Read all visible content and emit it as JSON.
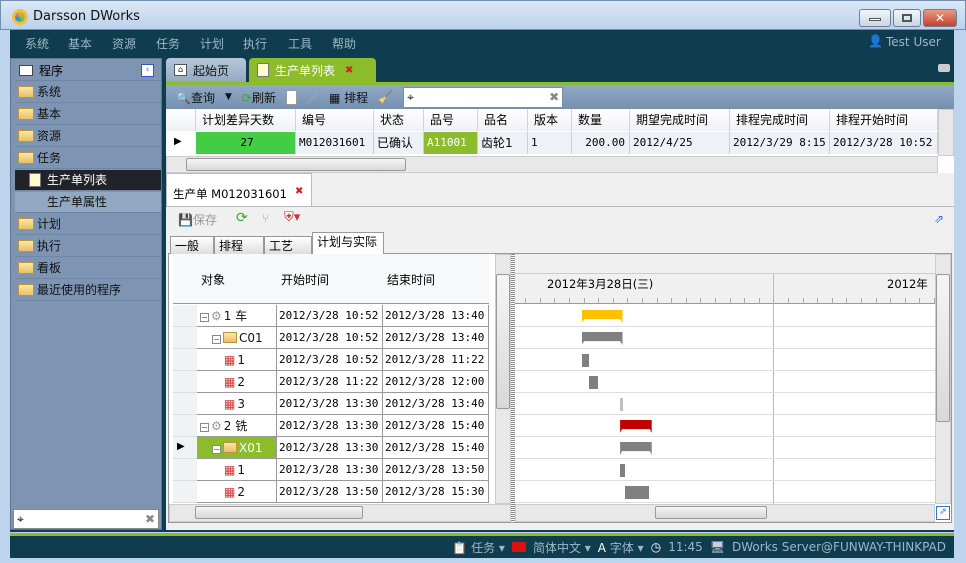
{
  "window": {
    "title": "Darsson DWorks"
  },
  "menu": [
    "系统",
    "基本",
    "资源",
    "任务",
    "计划",
    "执行",
    "工具",
    "帮助"
  ],
  "user": "Test User",
  "sidebar": {
    "header": "程序",
    "items": [
      "系统",
      "基本",
      "资源",
      "任务"
    ],
    "sub_selected": "生产单列表",
    "sub_item": "生产单属性",
    "items2": [
      "计划",
      "执行",
      "看板",
      "最近使用的程序"
    ],
    "search_value": ""
  },
  "tabs": [
    {
      "label": "起始页"
    },
    {
      "label": "生产单列表",
      "active": true
    }
  ],
  "toolbar": {
    "query": "查询",
    "refresh": "刷新",
    "schedule": "排程",
    "search_value": ""
  },
  "list": {
    "columns": [
      "计划差异天数",
      "编号",
      "状态",
      "品号",
      "品名",
      "版本",
      "数量",
      "期望完成时间",
      "排程完成时间",
      "排程开始时间"
    ],
    "rows": [
      [
        "27",
        "M012031601",
        "已确认",
        "A11001",
        "齿轮1",
        "1",
        "200.00",
        "2012/4/25",
        "2012/3/29 8:15",
        "2012/3/28 10:52"
      ]
    ]
  },
  "detail": {
    "tab_label": "生产单  M012031601",
    "save": "保存",
    "subtabs": [
      "一般",
      "排程",
      "工艺",
      "计划与实际"
    ],
    "tree_columns": [
      "对象",
      "开始时间",
      "结束时间"
    ],
    "tree_rows": [
      {
        "label": "1 车",
        "level": 0,
        "icon": "gear",
        "start": "2012/3/28 10:52",
        "end": "2012/3/28 13:40",
        "bar": "summary",
        "color": "#ffc000"
      },
      {
        "label": "C01",
        "level": 1,
        "icon": "folder",
        "start": "2012/3/28 10:52",
        "end": "2012/3/28 13:40",
        "bar": "summary",
        "color": "#808080"
      },
      {
        "label": "1",
        "level": 2,
        "icon": "calendar",
        "start": "2012/3/28 10:52",
        "end": "2012/3/28 11:22",
        "bar": "task",
        "color": "#808080"
      },
      {
        "label": "2",
        "level": 2,
        "icon": "calendar",
        "start": "2012/3/28 11:22",
        "end": "2012/3/28 12:00",
        "bar": "task",
        "color": "#808080"
      },
      {
        "label": "3",
        "level": 2,
        "icon": "calendar",
        "start": "2012/3/28 13:30",
        "end": "2012/3/28 13:40",
        "bar": "task",
        "color": "#c0c0c0"
      },
      {
        "label": "2 铣",
        "level": 0,
        "icon": "gear",
        "start": "2012/3/28 13:30",
        "end": "2012/3/28 15:40",
        "bar": "summary",
        "color": "#c00000"
      },
      {
        "label": "X01",
        "level": 1,
        "icon": "folder",
        "start": "2012/3/28 13:30",
        "end": "2012/3/28 15:40",
        "bar": "summary",
        "color": "#808080",
        "selected": true
      },
      {
        "label": "1",
        "level": 2,
        "icon": "calendar",
        "start": "2012/3/28 13:30",
        "end": "2012/3/28 13:50",
        "bar": "task",
        "color": "#808080"
      },
      {
        "label": "2",
        "level": 2,
        "icon": "calendar",
        "start": "2012/3/28 13:50",
        "end": "2012/3/28 15:30",
        "bar": "task",
        "color": "#808080"
      }
    ],
    "gantt_days": [
      "2012年3月28日(三)",
      "2012年"
    ]
  },
  "status": {
    "tasks": "任务",
    "language": "简体中文",
    "font": "字体",
    "time": "11:45",
    "server": "DWorks Server@FUNWAY-THINKPAD"
  }
}
